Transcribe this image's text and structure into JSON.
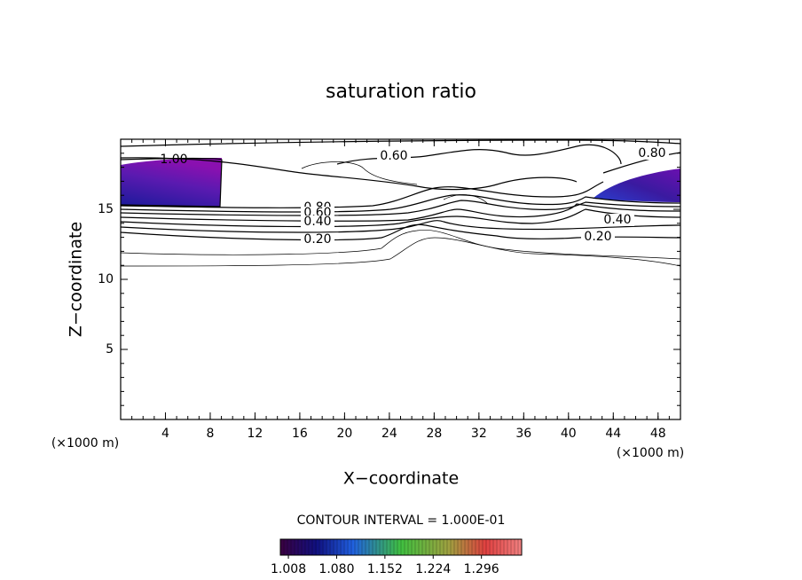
{
  "chart_data": {
    "type": "contour",
    "title": "saturation ratio",
    "xlabel": "X−coordinate",
    "ylabel": "Z−coordinate",
    "axis_unit": "(×1000 m)",
    "xlim": [
      0,
      50
    ],
    "xticks": [
      4,
      8,
      12,
      16,
      20,
      24,
      28,
      32,
      36,
      40,
      44,
      48
    ],
    "ylim": [
      0,
      20
    ],
    "yticks": [
      5,
      10,
      15
    ],
    "contour_labels": [
      {
        "value": 1.0,
        "label": "1.00"
      },
      {
        "value": 0.6,
        "label": "0.60"
      },
      {
        "value": 0.8,
        "label": "0.80"
      },
      {
        "value": 0.8,
        "label": "0.80"
      },
      {
        "value": 0.6,
        "label": "0.60"
      },
      {
        "value": 0.4,
        "label": "0.40"
      },
      {
        "value": 0.2,
        "label": "0.20"
      },
      {
        "value": 0.4,
        "label": "0.40"
      },
      {
        "value": 0.2,
        "label": "0.20"
      }
    ],
    "contour_interval": "CONTOUR INTERVAL = 1.000E-01",
    "colorbar_lim": [
      0.996,
      1.356
    ],
    "colorbar_ticks": [
      {
        "value": 1.008,
        "label": "1.008"
      },
      {
        "value": 1.08,
        "label": "1.080"
      },
      {
        "value": 1.152,
        "label": "1.152"
      },
      {
        "value": 1.224,
        "label": "1.224"
      },
      {
        "value": 1.296,
        "label": "1.296"
      }
    ]
  }
}
